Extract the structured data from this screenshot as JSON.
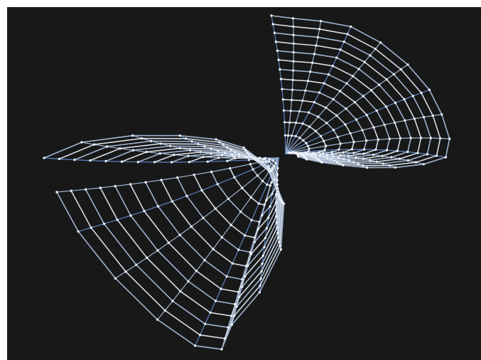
{
  "colors": {
    "background": "#181818",
    "page_margin": "#ffffff",
    "wire_light": "#d6dde6",
    "wire_blue": "#5b86c4",
    "wire_mid": "#9fb4d0",
    "node": "#e9eef5"
  },
  "mesh": {
    "object": "wireframe-saddle-surface",
    "rings_per_lobe": 13,
    "spokes_per_lobe": 16
  }
}
